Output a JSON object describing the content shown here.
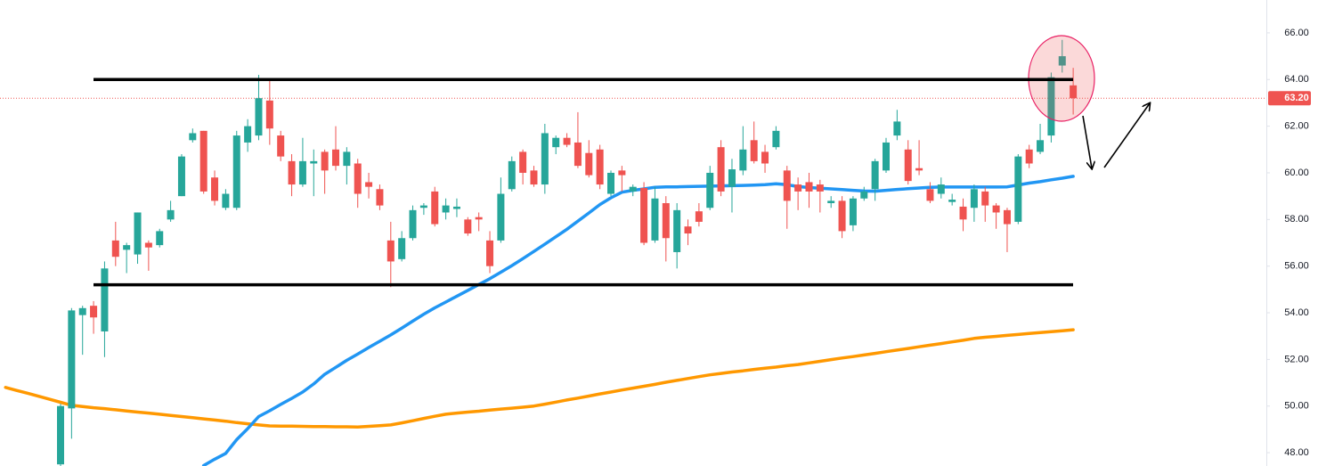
{
  "chart_data": {
    "type": "candlestick",
    "categories": [
      null,
      null,
      null,
      null,
      null,
      null,
      null,
      null,
      null,
      null,
      null,
      null,
      null,
      null,
      null,
      null,
      null,
      null,
      null,
      null,
      null,
      null,
      null,
      null,
      null,
      null,
      null,
      null,
      null,
      null,
      null,
      null,
      null,
      null,
      null,
      null,
      null,
      null,
      null,
      null,
      null,
      null,
      null,
      null,
      null,
      null,
      null,
      null,
      null,
      null,
      null,
      null,
      null,
      null,
      null,
      null,
      null,
      null,
      null,
      null,
      null,
      null,
      null,
      null,
      null,
      null,
      null,
      null,
      null,
      null,
      null,
      null,
      null,
      null,
      null,
      null,
      null,
      null,
      null,
      null,
      null,
      null,
      null,
      null,
      null,
      null,
      null,
      null,
      null,
      null,
      null,
      null,
      null,
      null,
      null,
      null,
      null,
      null
    ],
    "open": [
      null,
      null,
      null,
      null,
      null,
      47.5,
      49.9,
      53.9,
      54.3,
      53.2,
      57.1,
      56.7,
      56.5,
      57.0,
      56.9,
      58.0,
      59.0,
      61.4,
      61.8,
      59.8,
      58.5,
      58.5,
      61.3,
      61.6,
      63.1,
      61.6,
      60.5,
      59.5,
      60.4,
      60.9,
      61.0,
      60.3,
      60.4,
      59.6,
      59.3,
      57.1,
      56.3,
      57.2,
      58.5,
      59.2,
      58.3,
      58.45,
      58.0,
      58.1,
      57.1,
      57.1,
      59.3,
      60.9,
      60.1,
      59.5,
      61.1,
      61.5,
      61.3,
      60.85,
      61.0,
      59.1,
      60.1,
      59.2,
      59.35,
      57.1,
      58.7,
      56.6,
      57.7,
      58.35,
      58.5,
      61.1,
      59.4,
      60.1,
      61.4,
      60.9,
      61.1,
      60.1,
      59.5,
      59.6,
      59.5,
      58.7,
      58.8,
      57.75,
      58.9,
      59.3,
      60.1,
      61.6,
      61.0,
      60.2,
      59.3,
      59.1,
      58.75,
      58.55,
      58.5,
      59.2,
      58.6,
      58.4,
      57.9,
      61.0,
      60.9,
      61.6,
      64.6,
      63.75
    ],
    "high": [
      null,
      null,
      null,
      null,
      null,
      50.1,
      54.2,
      54.3,
      54.5,
      56.2,
      57.9,
      57.0,
      58.3,
      57.1,
      57.6,
      58.8,
      60.8,
      61.9,
      61.8,
      60.1,
      59.3,
      61.8,
      62.3,
      64.2,
      64.0,
      61.8,
      60.8,
      61.5,
      61.0,
      61.0,
      62.0,
      61.1,
      60.6,
      60.0,
      59.5,
      57.9,
      57.5,
      58.6,
      58.7,
      59.4,
      58.9,
      58.9,
      58.1,
      58.3,
      57.5,
      59.8,
      60.7,
      61.0,
      60.3,
      62.1,
      61.6,
      61.7,
      62.6,
      61.4,
      61.2,
      60.1,
      60.3,
      59.5,
      59.6,
      59.4,
      59.0,
      58.7,
      58.0,
      58.7,
      60.3,
      61.4,
      60.6,
      62.0,
      62.2,
      61.2,
      62.0,
      60.3,
      59.8,
      60.0,
      59.7,
      59.0,
      59.0,
      59.0,
      59.4,
      60.6,
      61.5,
      62.7,
      61.4,
      61.4,
      59.6,
      59.8,
      59.1,
      58.9,
      59.5,
      59.4,
      58.7,
      58.5,
      60.8,
      61.2,
      62.1,
      64.3,
      65.7,
      64.5
    ],
    "low": [
      null,
      null,
      null,
      null,
      null,
      47.4,
      48.6,
      52.2,
      53.1,
      52.1,
      56.0,
      55.7,
      56.1,
      55.8,
      56.8,
      57.9,
      59.0,
      61.3,
      59.1,
      58.6,
      58.4,
      58.4,
      60.9,
      61.4,
      61.2,
      60.5,
      59.0,
      59.4,
      59.0,
      59.1,
      60.1,
      59.5,
      58.5,
      58.9,
      58.4,
      55.1,
      56.2,
      57.1,
      58.2,
      57.7,
      58.0,
      58.1,
      57.3,
      57.5,
      55.7,
      57.0,
      59.2,
      59.5,
      59.4,
      59.1,
      60.8,
      61.1,
      60.2,
      59.8,
      59.3,
      59.0,
      59.2,
      59.0,
      56.9,
      57.0,
      56.2,
      55.9,
      56.9,
      57.7,
      58.4,
      59.0,
      58.3,
      59.9,
      60.4,
      60.0,
      61.0,
      57.6,
      58.4,
      58.5,
      58.3,
      58.5,
      57.2,
      57.5,
      58.8,
      58.8,
      60.0,
      61.4,
      59.5,
      59.9,
      58.7,
      58.9,
      58.6,
      57.5,
      57.9,
      57.9,
      57.6,
      56.6,
      57.8,
      60.2,
      60.8,
      61.3,
      64.3,
      62.5
    ],
    "close": [
      null,
      null,
      null,
      null,
      null,
      50.0,
      54.1,
      54.2,
      53.8,
      55.9,
      56.4,
      56.9,
      58.3,
      56.8,
      57.5,
      58.4,
      60.7,
      61.7,
      59.2,
      58.8,
      59.1,
      61.6,
      62.0,
      63.2,
      61.9,
      60.7,
      59.5,
      60.5,
      60.5,
      60.1,
      60.3,
      60.9,
      59.1,
      59.4,
      58.6,
      56.2,
      57.2,
      58.4,
      58.6,
      57.8,
      58.6,
      58.55,
      57.4,
      58.0,
      56.0,
      59.1,
      60.5,
      60.0,
      59.5,
      61.7,
      61.5,
      61.2,
      60.3,
      59.9,
      59.5,
      60.0,
      59.9,
      59.4,
      57.0,
      58.9,
      57.2,
      58.4,
      57.4,
      57.9,
      60.0,
      59.2,
      60.15,
      61.0,
      60.5,
      60.4,
      61.8,
      58.8,
      59.2,
      59.2,
      59.2,
      58.8,
      57.5,
      58.9,
      59.2,
      60.5,
      61.3,
      62.2,
      59.65,
      60.1,
      58.8,
      59.5,
      58.85,
      58.0,
      59.3,
      58.6,
      58.3,
      57.8,
      60.7,
      60.4,
      61.4,
      64.1,
      65.0,
      63.2
    ],
    "up_color": "#26a69a",
    "down_color": "#ef5350",
    "lines": [
      {
        "color": "#ff9800",
        "values": [
          50.8,
          50.67,
          50.55,
          50.42,
          50.29,
          50.16,
          50.03,
          49.98,
          49.93,
          49.89,
          49.84,
          49.79,
          49.74,
          49.7,
          49.65,
          49.6,
          49.55,
          49.5,
          49.45,
          49.4,
          49.35,
          49.29,
          49.24,
          49.19,
          49.15,
          49.14,
          49.14,
          49.13,
          49.12,
          49.12,
          49.11,
          49.11,
          49.1,
          49.13,
          49.16,
          49.19,
          49.28,
          49.37,
          49.47,
          49.56,
          49.65,
          49.7,
          49.74,
          49.78,
          49.83,
          49.87,
          49.91,
          49.95,
          50.0,
          50.08,
          50.17,
          50.26,
          50.34,
          50.43,
          50.52,
          50.6,
          50.69,
          50.77,
          50.85,
          50.93,
          51.02,
          51.1,
          51.18,
          51.26,
          51.34,
          51.4,
          51.46,
          51.51,
          51.57,
          51.62,
          51.67,
          51.73,
          51.78,
          51.85,
          51.92,
          51.99,
          52.06,
          52.12,
          52.19,
          52.26,
          52.33,
          52.4,
          52.47,
          52.54,
          52.61,
          52.68,
          52.75,
          52.82,
          52.9,
          52.95,
          52.99,
          53.03,
          53.07,
          53.11,
          53.15,
          53.19,
          53.23,
          53.27
        ]
      },
      {
        "color": "#2196f3",
        "values": [
          null,
          null,
          null,
          null,
          null,
          null,
          null,
          null,
          null,
          null,
          null,
          null,
          null,
          null,
          null,
          null,
          null,
          null,
          47.45,
          47.72,
          47.97,
          48.56,
          49.03,
          49.55,
          49.8,
          50.07,
          50.33,
          50.6,
          50.95,
          51.36,
          51.66,
          51.96,
          52.23,
          52.51,
          52.78,
          53.05,
          53.34,
          53.64,
          53.94,
          54.21,
          54.46,
          54.71,
          54.96,
          55.21,
          55.46,
          55.74,
          56.02,
          56.32,
          56.63,
          56.94,
          57.26,
          57.58,
          57.93,
          58.28,
          58.64,
          58.93,
          59.17,
          59.25,
          59.31,
          59.38,
          59.4,
          59.4,
          59.41,
          59.42,
          59.43,
          59.44,
          59.45,
          59.46,
          59.47,
          59.49,
          59.53,
          59.49,
          59.41,
          59.37,
          59.34,
          59.31,
          59.28,
          59.25,
          59.22,
          59.21,
          59.25,
          59.29,
          59.32,
          59.35,
          59.38,
          59.39,
          59.39,
          59.39,
          59.39,
          59.39,
          59.39,
          59.4,
          59.48,
          59.56,
          59.62,
          59.7,
          59.77,
          59.85
        ]
      }
    ],
    "hlines": [
      {
        "value": 64.0,
        "color": "#000000"
      },
      {
        "value": 55.2,
        "color": "#000000"
      }
    ],
    "last_price": {
      "value": 63.2,
      "label": "63.20",
      "color": "#ef5350"
    },
    "ylim": [
      47.43,
      67.41
    ],
    "yticks": [
      {
        "value": 48,
        "label": "48.00"
      },
      {
        "value": 50,
        "label": "50.00"
      },
      {
        "value": 52,
        "label": "52.00"
      },
      {
        "value": 54,
        "label": "54.00"
      },
      {
        "value": 56,
        "label": "56.00"
      },
      {
        "value": 58,
        "label": "58.00"
      },
      {
        "value": 60,
        "label": "60.00"
      },
      {
        "value": 62,
        "label": "62.00"
      },
      {
        "value": 64,
        "label": "64.00"
      },
      {
        "value": 66,
        "label": "66.00"
      }
    ],
    "grid": false
  }
}
